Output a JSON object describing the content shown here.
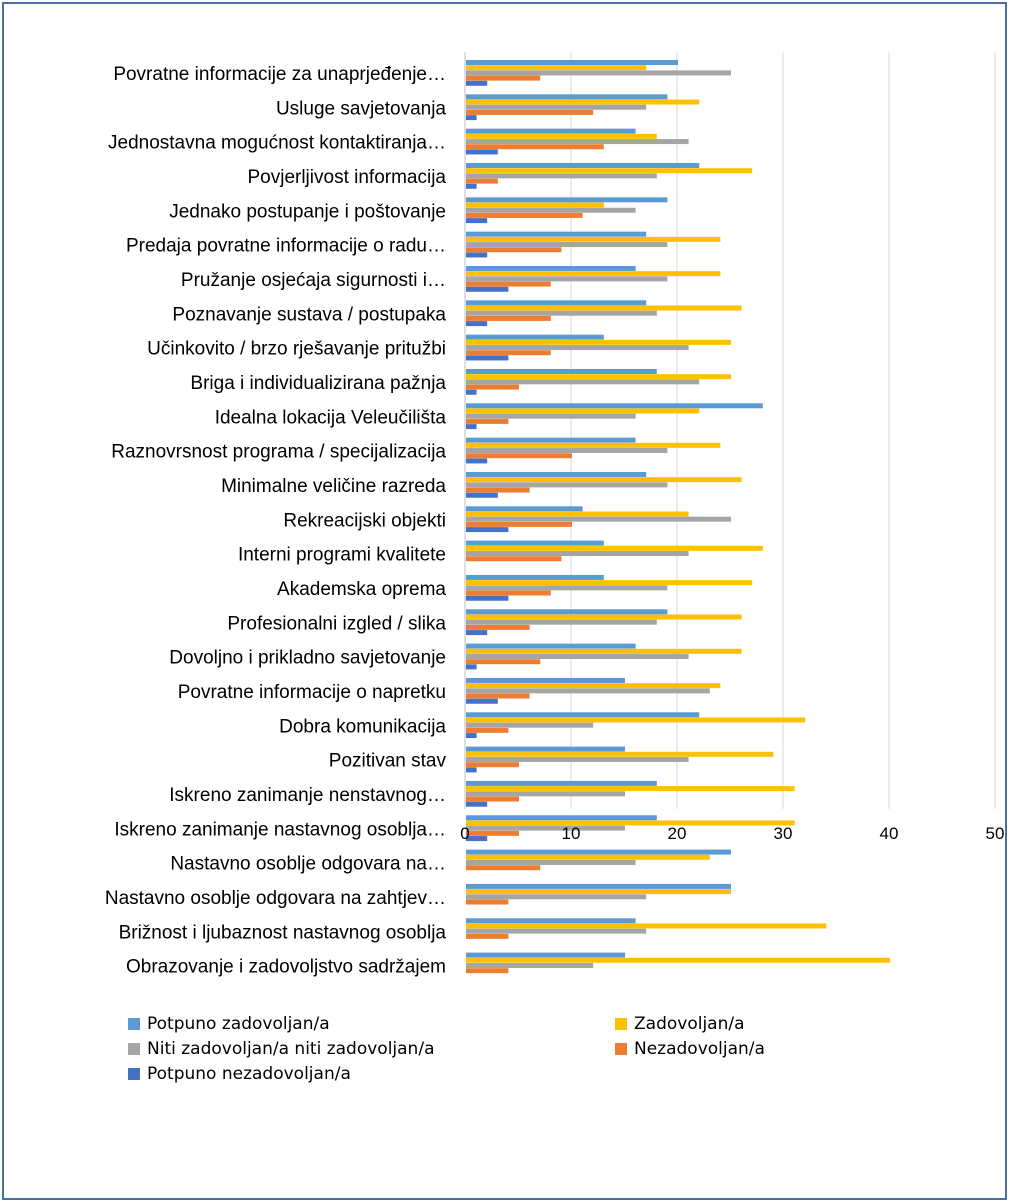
{
  "chart_data": {
    "type": "bar",
    "orientation": "horizontal",
    "title": "",
    "xlabel": "",
    "ylabel": "",
    "xlim": [
      0,
      50
    ],
    "x_ticks": [
      "0",
      "10",
      "20",
      "30",
      "40",
      "50"
    ],
    "grid": "vertical gridlines on",
    "legend_position": "bottom",
    "categories": [
      "Povratne informacije za unaprjeđenje…",
      "Usluge savjetovanja",
      "Jednostavna mogućnost kontaktiranja…",
      "Povjerljivost informacija",
      "Jednako postupanje i poštovanje",
      "Predaja povratne informacije o radu…",
      "Pružanje osjećaja  sigurnosti  i…",
      "Poznavanje sustava / postupaka",
      "Učinkovito / brzo rješavanje pritužbi",
      "Briga i individualizirana pažnja",
      "Idealna lokacija Veleučilišta",
      "Raznovrsnost programa / specijalizacija",
      "Minimalne veličine razreda",
      "Rekreacijski objekti",
      "Interni programi kvalitete",
      "Akademska oprema",
      "Profesionalni izgled / slika",
      "Dovoljno i prikladno savjetovanje",
      "Povratne informacije o napretku",
      "Dobra komunikacija",
      "Pozitivan stav",
      "Iskreno zanimanje nenstavnog…",
      "Iskreno zanimanje nastavnog osoblja…",
      "Nastavno osoblje odgovara na…",
      "Nastavno osoblje odgovara na zahtjev…",
      "Brižnost i ljubaznost nastavnog osoblja",
      "Obrazovanje i zadovoljstvo sadržajem"
    ],
    "series": [
      {
        "name": "Potpuno zadovoljan/a",
        "color": "#5b9bd5",
        "values": [
          20,
          19,
          16,
          22,
          19,
          17,
          16,
          17,
          13,
          18,
          28,
          16,
          17,
          11,
          13,
          13,
          19,
          16,
          15,
          22,
          15,
          18,
          18,
          25,
          25,
          16,
          15
        ]
      },
      {
        "name": "Zadovoljan/a",
        "color": "#ffc000",
        "values": [
          17,
          22,
          18,
          27,
          13,
          24,
          24,
          26,
          25,
          25,
          22,
          24,
          26,
          21,
          28,
          27,
          26,
          26,
          24,
          32,
          29,
          31,
          31,
          23,
          25,
          34,
          40
        ]
      },
      {
        "name": "Niti zadovoljan/a niti zadovoljan/a",
        "color": "#a5a5a5",
        "values": [
          25,
          17,
          21,
          18,
          16,
          19,
          19,
          18,
          21,
          22,
          16,
          19,
          19,
          25,
          21,
          19,
          18,
          21,
          23,
          12,
          21,
          15,
          15,
          16,
          17,
          17,
          12
        ]
      },
      {
        "name": "Nezadovoljan/a",
        "color": "#ed7d31",
        "values": [
          7,
          12,
          13,
          3,
          11,
          9,
          8,
          8,
          8,
          5,
          4,
          10,
          6,
          10,
          9,
          8,
          6,
          7,
          6,
          4,
          5,
          5,
          5,
          7,
          4,
          4,
          4
        ]
      },
      {
        "name": "Potpuno nezadovoljan/a",
        "color": "#4472c4",
        "values": [
          2,
          1,
          3,
          1,
          2,
          2,
          4,
          2,
          4,
          1,
          1,
          2,
          3,
          4,
          0,
          4,
          2,
          1,
          3,
          1,
          1,
          2,
          2,
          0,
          0,
          0,
          0
        ]
      }
    ]
  }
}
